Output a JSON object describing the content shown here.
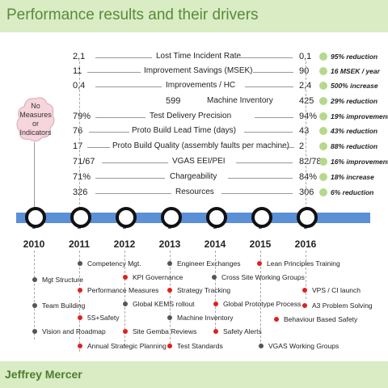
{
  "title": "Performance results and their drivers",
  "author": "Jeffrey Mercer",
  "cloud_text": [
    "No",
    "Measures",
    "or",
    "Indicators"
  ],
  "metrics": [
    {
      "before": "2,1",
      "label": "Lost Time Incident Rate",
      "after": "0,1",
      "result": "95% reduction"
    },
    {
      "before": "11",
      "label": "Improvement Savings (MSEK)",
      "after": "90",
      "result": "16 MSEK / year"
    },
    {
      "before": "0,4",
      "label": "Improvements / HC",
      "after": "2,4",
      "result": "500% increase"
    },
    {
      "before": "599",
      "label": "Machine Inventory",
      "after": "425",
      "result": "29% reduction"
    },
    {
      "before": "79%",
      "label": "Test Delivery Precision",
      "after": "94%",
      "result": "19% improvement"
    },
    {
      "before": "76",
      "label": "Proto Build Lead Time (days)",
      "after": "43",
      "result": "43% reduction"
    },
    {
      "before": "17",
      "label": "Proto Build Quality (assembly faults per machine)",
      "after": "2",
      "result": "88% reduction"
    },
    {
      "before": "71/67",
      "label": "VGAS EEI/PEI",
      "after": "82/78",
      "result": "16% improvement"
    },
    {
      "before": "71%",
      "label": "Chargeability",
      "after": "84%",
      "result": "18% increase"
    },
    {
      "before": "326",
      "label": "Resources",
      "after": "306",
      "result": "6% reduction"
    }
  ],
  "years": [
    "2010",
    "2011",
    "2012",
    "2013",
    "2014",
    "2015",
    "2016"
  ],
  "drivers": [
    {
      "label": "Competency Mgt.",
      "color": "dark"
    },
    {
      "label": "Engineer Exchanges",
      "color": "dark"
    },
    {
      "label": "Lean Principles Training",
      "color": "red"
    },
    {
      "label": "KPI Governance",
      "color": "red"
    },
    {
      "label": "Cross Site Working Groups",
      "color": "dark"
    },
    {
      "label": "Mgt Structure",
      "color": "dark"
    },
    {
      "label": "Performance Measures",
      "color": "red"
    },
    {
      "label": "Strategy Tracking",
      "color": "red"
    },
    {
      "label": "VPS / CI launch",
      "color": "red"
    },
    {
      "label": "Team Building",
      "color": "dark"
    },
    {
      "label": "Global KEMS rollout",
      "color": "dark"
    },
    {
      "label": "Global Prototype Process",
      "color": "red"
    },
    {
      "label": "A3 Problem Solving",
      "color": "red"
    },
    {
      "label": "5S+Safety",
      "color": "red"
    },
    {
      "label": "Machine Inventory",
      "color": "dark"
    },
    {
      "label": "Behaviour Based Safety",
      "color": "red"
    },
    {
      "label": "Vision and Roadmap",
      "color": "dark"
    },
    {
      "label": "Site Gemba Reviews",
      "color": "red"
    },
    {
      "label": "Safety Alerts",
      "color": "red"
    },
    {
      "label": "Annual Strategic Planning",
      "color": "red"
    },
    {
      "label": "Test Standards",
      "color": "red"
    },
    {
      "label": "VGAS Working Groups",
      "color": "dark"
    }
  ],
  "colors": {
    "red_dot": "#e02020",
    "dark_dot": "#555555",
    "result_dot": "#b5d98b",
    "timeline": "#5b8fd6",
    "header": "#d9ecc4"
  }
}
